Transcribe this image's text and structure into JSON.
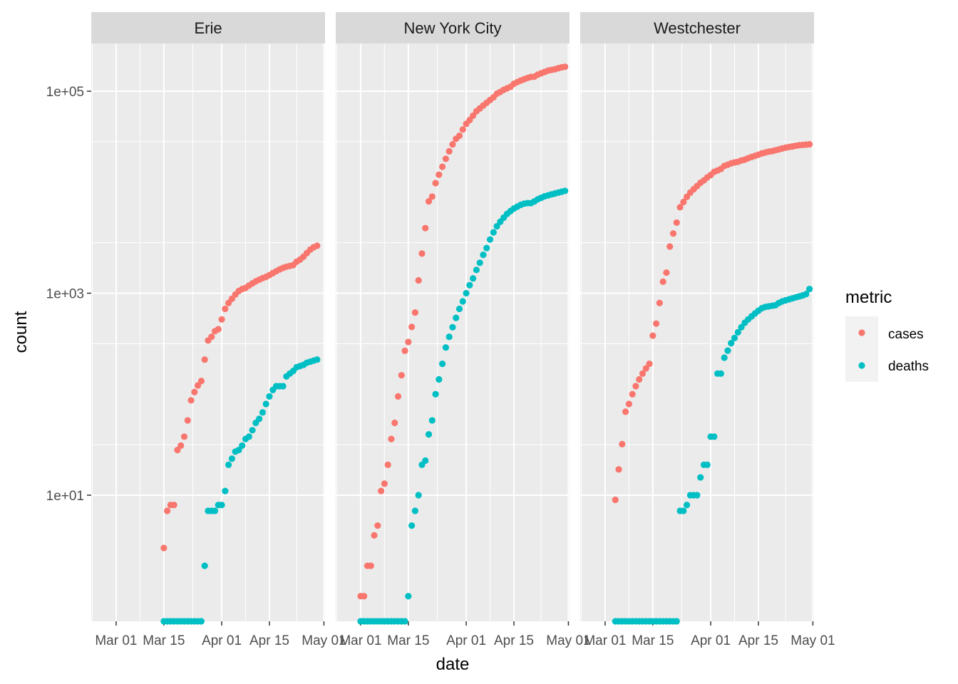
{
  "chart_data": {
    "type": "scatter",
    "facet_by": "county",
    "xlabel": "date",
    "ylabel": "count",
    "y_scale": "log10",
    "x_range": [
      "2020-02-25",
      "2020-05-01"
    ],
    "ylim": [
      0.5,
      300000
    ],
    "x_ticks": [
      {
        "date": "2020-03-01",
        "label": "Mar 01"
      },
      {
        "date": "2020-03-15",
        "label": "Mar 15"
      },
      {
        "date": "2020-04-01",
        "label": "Apr 01"
      },
      {
        "date": "2020-04-15",
        "label": "Apr 15"
      },
      {
        "date": "2020-05-01",
        "label": "May 01"
      }
    ],
    "y_ticks": [
      {
        "value": 10,
        "label": "1e+01"
      },
      {
        "value": 1000,
        "label": "1e+03"
      },
      {
        "value": 100000,
        "label": "1e+05"
      }
    ],
    "grid": true,
    "legend": {
      "title": "metric",
      "position": "right"
    },
    "colors": {
      "cases": "#F8766D",
      "deaths": "#00BFC4",
      "panel_bg": "#EBEBEB",
      "strip_bg": "#D9D9D9",
      "grid": "#FFFFFF"
    },
    "series_names": [
      "cases",
      "deaths"
    ],
    "panels": [
      {
        "title": "Erie",
        "series": [
          {
            "name": "cases",
            "x": [
              "2020-03-15",
              "2020-03-16",
              "2020-03-17",
              "2020-03-18",
              "2020-03-19",
              "2020-03-20",
              "2020-03-21",
              "2020-03-22",
              "2020-03-23",
              "2020-03-24",
              "2020-03-25",
              "2020-03-26",
              "2020-03-27",
              "2020-03-28",
              "2020-03-29",
              "2020-03-30",
              "2020-03-31",
              "2020-04-01",
              "2020-04-02",
              "2020-04-03",
              "2020-04-04",
              "2020-04-05",
              "2020-04-06",
              "2020-04-07",
              "2020-04-08",
              "2020-04-09",
              "2020-04-10",
              "2020-04-11",
              "2020-04-12",
              "2020-04-13",
              "2020-04-14",
              "2020-04-15",
              "2020-04-16",
              "2020-04-17",
              "2020-04-18",
              "2020-04-19",
              "2020-04-20",
              "2020-04-21",
              "2020-04-22",
              "2020-04-23",
              "2020-04-24",
              "2020-04-25",
              "2020-04-26",
              "2020-04-27",
              "2020-04-28",
              "2020-04-29"
            ],
            "y": [
              3,
              7,
              8,
              8,
              28,
              31,
              38,
              55,
              87,
              105,
              122,
              135,
              220,
              340,
              370,
              420,
              440,
              550,
              700,
              800,
              880,
              970,
              1050,
              1100,
              1130,
              1190,
              1250,
              1310,
              1360,
              1410,
              1450,
              1510,
              1580,
              1650,
              1720,
              1780,
              1830,
              1860,
              1900,
              2050,
              2150,
              2300,
              2500,
              2700,
              2850,
              2950
            ]
          },
          {
            "name": "deaths",
            "x": [
              "2020-03-15",
              "2020-03-16",
              "2020-03-17",
              "2020-03-18",
              "2020-03-19",
              "2020-03-20",
              "2020-03-21",
              "2020-03-22",
              "2020-03-23",
              "2020-03-24",
              "2020-03-25",
              "2020-03-26",
              "2020-03-27",
              "2020-03-28",
              "2020-03-29",
              "2020-03-30",
              "2020-03-31",
              "2020-04-01",
              "2020-04-02",
              "2020-04-03",
              "2020-04-04",
              "2020-04-05",
              "2020-04-06",
              "2020-04-07",
              "2020-04-08",
              "2020-04-09",
              "2020-04-10",
              "2020-04-11",
              "2020-04-12",
              "2020-04-13",
              "2020-04-14",
              "2020-04-15",
              "2020-04-16",
              "2020-04-17",
              "2020-04-18",
              "2020-04-19",
              "2020-04-20",
              "2020-04-21",
              "2020-04-22",
              "2020-04-23",
              "2020-04-24",
              "2020-04-25",
              "2020-04-26",
              "2020-04-27",
              "2020-04-28",
              "2020-04-29"
            ],
            "y": [
              0,
              0,
              0,
              0,
              0,
              0,
              0,
              0,
              0,
              0,
              0,
              0,
              2,
              7,
              7,
              7,
              8,
              8,
              11,
              20,
              23,
              27,
              28,
              31,
              36,
              38,
              44,
              52,
              57,
              66,
              80,
              95,
              110,
              120,
              120,
              120,
              150,
              160,
              170,
              185,
              190,
              195,
              205,
              210,
              215,
              220
            ]
          }
        ]
      },
      {
        "title": "New York City",
        "series": [
          {
            "name": "cases",
            "x": [
              "2020-03-01",
              "2020-03-02",
              "2020-03-03",
              "2020-03-04",
              "2020-03-05",
              "2020-03-06",
              "2020-03-07",
              "2020-03-08",
              "2020-03-09",
              "2020-03-10",
              "2020-03-11",
              "2020-03-12",
              "2020-03-13",
              "2020-03-14",
              "2020-03-15",
              "2020-03-16",
              "2020-03-17",
              "2020-03-18",
              "2020-03-19",
              "2020-03-20",
              "2020-03-21",
              "2020-03-22",
              "2020-03-23",
              "2020-03-24",
              "2020-03-25",
              "2020-03-26",
              "2020-03-27",
              "2020-03-28",
              "2020-03-29",
              "2020-03-30",
              "2020-03-31",
              "2020-04-01",
              "2020-04-02",
              "2020-04-03",
              "2020-04-04",
              "2020-04-05",
              "2020-04-06",
              "2020-04-07",
              "2020-04-08",
              "2020-04-09",
              "2020-04-10",
              "2020-04-11",
              "2020-04-12",
              "2020-04-13",
              "2020-04-14",
              "2020-04-15",
              "2020-04-16",
              "2020-04-17",
              "2020-04-18",
              "2020-04-19",
              "2020-04-20",
              "2020-04-21",
              "2020-04-22",
              "2020-04-23",
              "2020-04-24",
              "2020-04-25",
              "2020-04-26",
              "2020-04-27",
              "2020-04-28",
              "2020-04-29",
              "2020-04-30"
            ],
            "y": [
              1,
              1,
              2,
              2,
              4,
              5,
              11,
              13,
              20,
              36,
              52,
              95,
              154,
              269,
              329,
              463,
              644,
              1339,
              2469,
              4408,
              8115,
              9045,
              12305,
              14904,
              17856,
              21393,
              25398,
              29766,
              33768,
              36221,
              41771,
              47439,
              51809,
              57159,
              63306,
              67551,
              72181,
              76876,
              81803,
              87028,
              94409,
              98308,
              103208,
              106763,
              110465,
              118302,
              123146,
              127352,
              131263,
              135242,
              138435,
              139385,
              145855,
              150484,
              155113,
              159865,
              162338,
              164841,
              168845,
              172354,
              174331
            ]
          },
          {
            "name": "deaths",
            "x": [
              "2020-03-01",
              "2020-03-02",
              "2020-03-03",
              "2020-03-04",
              "2020-03-05",
              "2020-03-06",
              "2020-03-07",
              "2020-03-08",
              "2020-03-09",
              "2020-03-10",
              "2020-03-11",
              "2020-03-12",
              "2020-03-13",
              "2020-03-14",
              "2020-03-15",
              "2020-03-16",
              "2020-03-17",
              "2020-03-18",
              "2020-03-19",
              "2020-03-20",
              "2020-03-21",
              "2020-03-22",
              "2020-03-23",
              "2020-03-24",
              "2020-03-25",
              "2020-03-26",
              "2020-03-27",
              "2020-03-28",
              "2020-03-29",
              "2020-03-30",
              "2020-03-31",
              "2020-04-01",
              "2020-04-02",
              "2020-04-03",
              "2020-04-04",
              "2020-04-05",
              "2020-04-06",
              "2020-04-07",
              "2020-04-08",
              "2020-04-09",
              "2020-04-10",
              "2020-04-11",
              "2020-04-12",
              "2020-04-13",
              "2020-04-14",
              "2020-04-15",
              "2020-04-16",
              "2020-04-17",
              "2020-04-18",
              "2020-04-19",
              "2020-04-20",
              "2020-04-21",
              "2020-04-22",
              "2020-04-23",
              "2020-04-24",
              "2020-04-25",
              "2020-04-26",
              "2020-04-27",
              "2020-04-28",
              "2020-04-29",
              "2020-04-30"
            ],
            "y": [
              0,
              0,
              0,
              0,
              0,
              0,
              0,
              0,
              0,
              0,
              0,
              0,
              0,
              0,
              1,
              5,
              7,
              10,
              20,
              22,
              40,
              55,
              100,
              140,
              200,
              290,
              370,
              460,
              570,
              700,
              830,
              1000,
              1200,
              1400,
              1700,
              2000,
              2400,
              2800,
              3400,
              4000,
              4600,
              5100,
              5600,
              6100,
              6500,
              6900,
              7200,
              7500,
              7700,
              7800,
              7800,
              8100,
              8500,
              8800,
              9100,
              9300,
              9500,
              9700,
              9900,
              10100,
              10300
            ]
          }
        ]
      },
      {
        "title": "Westchester",
        "series": [
          {
            "name": "cases",
            "x": [
              "2020-03-04",
              "2020-03-05",
              "2020-03-06",
              "2020-03-07",
              "2020-03-08",
              "2020-03-09",
              "2020-03-10",
              "2020-03-11",
              "2020-03-12",
              "2020-03-13",
              "2020-03-14",
              "2020-03-15",
              "2020-03-16",
              "2020-03-17",
              "2020-03-18",
              "2020-03-19",
              "2020-03-20",
              "2020-03-21",
              "2020-03-22",
              "2020-03-23",
              "2020-03-24",
              "2020-03-25",
              "2020-03-26",
              "2020-03-27",
              "2020-03-28",
              "2020-03-29",
              "2020-03-30",
              "2020-03-31",
              "2020-04-01",
              "2020-04-02",
              "2020-04-03",
              "2020-04-04",
              "2020-04-05",
              "2020-04-06",
              "2020-04-07",
              "2020-04-08",
              "2020-04-09",
              "2020-04-10",
              "2020-04-11",
              "2020-04-12",
              "2020-04-13",
              "2020-04-14",
              "2020-04-15",
              "2020-04-16",
              "2020-04-17",
              "2020-04-18",
              "2020-04-19",
              "2020-04-20",
              "2020-04-21",
              "2020-04-22",
              "2020-04-23",
              "2020-04-24",
              "2020-04-25",
              "2020-04-26",
              "2020-04-27",
              "2020-04-28",
              "2020-04-29",
              "2020-04-30"
            ],
            "y": [
              9,
              18,
              32,
              67,
              80,
              100,
              120,
              140,
              160,
              180,
              200,
              380,
              500,
              800,
              1300,
              1600,
              2900,
              3900,
              5000,
              7100,
              8000,
              9000,
              9900,
              10700,
              11500,
              12400,
              13100,
              14000,
              14800,
              15900,
              16400,
              17000,
              18200,
              18700,
              19300,
              19700,
              20000,
              20600,
              21000,
              21700,
              22300,
              22900,
              23500,
              24200,
              24700,
              25200,
              25500,
              26000,
              26500,
              27100,
              27600,
              28000,
              28400,
              28800,
              29200,
              29400,
              29600,
              29800
            ]
          },
          {
            "name": "deaths",
            "x": [
              "2020-03-04",
              "2020-03-05",
              "2020-03-06",
              "2020-03-07",
              "2020-03-08",
              "2020-03-09",
              "2020-03-10",
              "2020-03-11",
              "2020-03-12",
              "2020-03-13",
              "2020-03-14",
              "2020-03-15",
              "2020-03-16",
              "2020-03-17",
              "2020-03-18",
              "2020-03-19",
              "2020-03-20",
              "2020-03-21",
              "2020-03-22",
              "2020-03-23",
              "2020-03-24",
              "2020-03-25",
              "2020-03-26",
              "2020-03-27",
              "2020-03-28",
              "2020-03-29",
              "2020-03-30",
              "2020-03-31",
              "2020-04-01",
              "2020-04-02",
              "2020-04-03",
              "2020-04-04",
              "2020-04-05",
              "2020-04-06",
              "2020-04-07",
              "2020-04-08",
              "2020-04-09",
              "2020-04-10",
              "2020-04-11",
              "2020-04-12",
              "2020-04-13",
              "2020-04-14",
              "2020-04-15",
              "2020-04-16",
              "2020-04-17",
              "2020-04-18",
              "2020-04-19",
              "2020-04-20",
              "2020-04-21",
              "2020-04-22",
              "2020-04-23",
              "2020-04-24",
              "2020-04-25",
              "2020-04-26",
              "2020-04-27",
              "2020-04-28",
              "2020-04-29",
              "2020-04-30"
            ],
            "y": [
              0,
              0,
              0,
              0,
              0,
              0,
              0,
              0,
              0,
              0,
              0,
              0,
              0,
              0,
              0,
              0,
              0,
              0,
              0,
              7,
              7,
              8,
              10,
              10,
              10,
              15,
              20,
              20,
              38,
              38,
              160,
              160,
              230,
              270,
              320,
              360,
              410,
              460,
              510,
              550,
              590,
              630,
              670,
              710,
              730,
              740,
              750,
              760,
              800,
              830,
              850,
              870,
              890,
              910,
              930,
              950,
              980,
              1100
            ]
          }
        ]
      }
    ]
  }
}
